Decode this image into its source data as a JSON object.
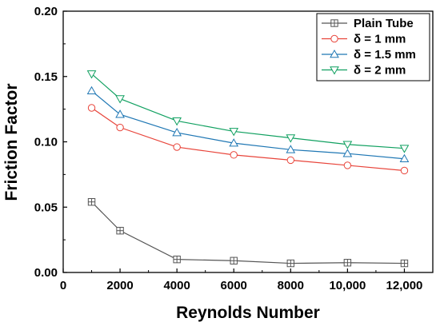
{
  "chart_data": {
    "type": "line",
    "xlabel": "Reynolds Number",
    "ylabel": "Friction Factor",
    "xlim": [
      0,
      13000
    ],
    "ylim": [
      0,
      0.2
    ],
    "x_ticks": [
      0,
      2000,
      4000,
      6000,
      8000,
      10000,
      12000
    ],
    "x_tick_labels": [
      "0",
      "2000",
      "4000",
      "6000",
      "8000",
      "10,000",
      "12,000"
    ],
    "y_ticks": [
      0,
      0.05,
      0.1,
      0.15,
      0.2
    ],
    "y_tick_labels": [
      "0.00",
      "0.05",
      "0.10",
      "0.15",
      "0.20"
    ],
    "grid": false,
    "legend_position": "top-right",
    "x": [
      1000,
      2000,
      4000,
      6000,
      8000,
      10000,
      12000
    ],
    "series": [
      {
        "name": "Plain Tube",
        "color": "#555555",
        "marker": "square-cross",
        "values": [
          0.054,
          0.032,
          0.01,
          0.009,
          0.007,
          0.0075,
          0.007
        ]
      },
      {
        "name": "δ = 1 mm",
        "color": "#e8443a",
        "marker": "circle",
        "values": [
          0.126,
          0.111,
          0.096,
          0.09,
          0.086,
          0.082,
          0.078
        ]
      },
      {
        "name": "δ = 1.5 mm",
        "color": "#1f77b4",
        "marker": "triangle-up",
        "values": [
          0.139,
          0.121,
          0.107,
          0.099,
          0.094,
          0.091,
          0.087
        ]
      },
      {
        "name": "δ = 2 mm",
        "color": "#10a060",
        "marker": "triangle-down",
        "values": [
          0.152,
          0.133,
          0.116,
          0.108,
          0.103,
          0.098,
          0.095
        ]
      }
    ]
  }
}
